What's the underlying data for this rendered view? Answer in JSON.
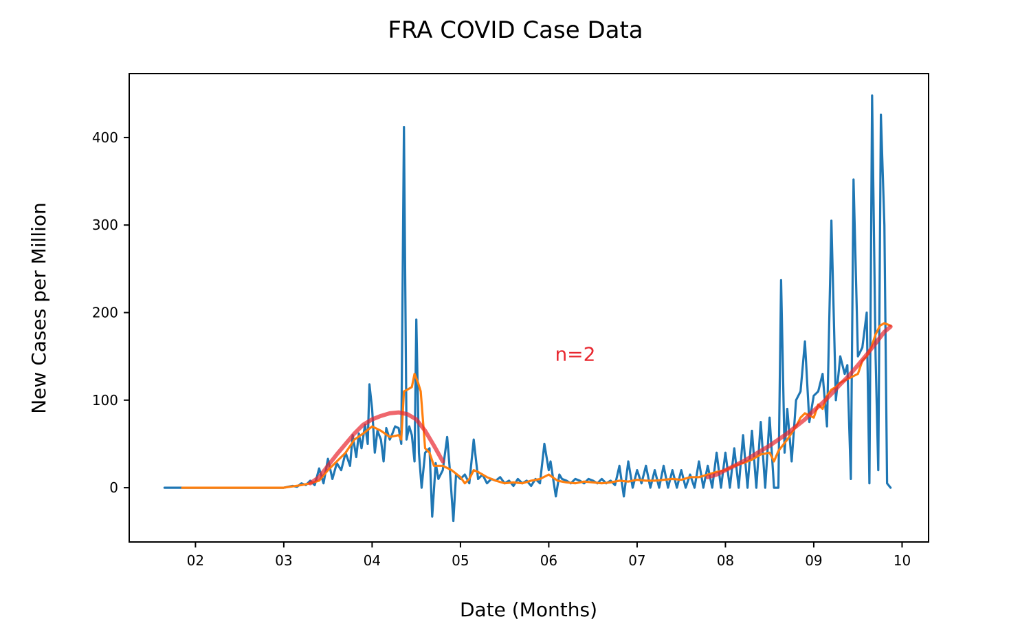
{
  "chart_data": {
    "type": "line",
    "title": "FRA COVID Case Data",
    "xlabel": "Date (Months)",
    "ylabel": "New Cases per Million",
    "xlim": [
      1.25,
      10.3
    ],
    "ylim": [
      -62,
      473
    ],
    "x_ticks": [
      2,
      3,
      4,
      5,
      6,
      7,
      8,
      9,
      10
    ],
    "x_tick_labels": [
      "02",
      "03",
      "04",
      "05",
      "06",
      "07",
      "08",
      "09",
      "10"
    ],
    "y_ticks": [
      0,
      100,
      200,
      300,
      400
    ],
    "y_tick_labels": [
      "0",
      "100",
      "200",
      "300",
      "400"
    ],
    "grid": false,
    "annotation": {
      "text": "n=2",
      "x": 6.3,
      "y": 145,
      "color": "#e8272f"
    },
    "series": [
      {
        "color": "#1f77b4",
        "points": [
          [
            1.65,
            0
          ],
          [
            1.85,
            0
          ],
          [
            2.2,
            0
          ],
          [
            2.6,
            0
          ],
          [
            3.0,
            0
          ],
          [
            3.1,
            2
          ],
          [
            3.15,
            1
          ],
          [
            3.2,
            5
          ],
          [
            3.25,
            3
          ],
          [
            3.3,
            8
          ],
          [
            3.35,
            3
          ],
          [
            3.4,
            22
          ],
          [
            3.45,
            5
          ],
          [
            3.5,
            33
          ],
          [
            3.55,
            10
          ],
          [
            3.6,
            28
          ],
          [
            3.65,
            20
          ],
          [
            3.7,
            40
          ],
          [
            3.75,
            25
          ],
          [
            3.78,
            60
          ],
          [
            3.82,
            35
          ],
          [
            3.85,
            62
          ],
          [
            3.88,
            45
          ],
          [
            3.92,
            72
          ],
          [
            3.95,
            50
          ],
          [
            3.97,
            118
          ],
          [
            4.0,
            90
          ],
          [
            4.03,
            40
          ],
          [
            4.06,
            65
          ],
          [
            4.1,
            55
          ],
          [
            4.13,
            30
          ],
          [
            4.16,
            68
          ],
          [
            4.2,
            55
          ],
          [
            4.23,
            62
          ],
          [
            4.26,
            70
          ],
          [
            4.3,
            68
          ],
          [
            4.33,
            50
          ],
          [
            4.36,
            412
          ],
          [
            4.39,
            55
          ],
          [
            4.42,
            70
          ],
          [
            4.45,
            60
          ],
          [
            4.48,
            30
          ],
          [
            4.5,
            192
          ],
          [
            4.53,
            40
          ],
          [
            4.56,
            0
          ],
          [
            4.6,
            40
          ],
          [
            4.65,
            45
          ],
          [
            4.68,
            -33
          ],
          [
            4.72,
            28
          ],
          [
            4.75,
            10
          ],
          [
            4.8,
            20
          ],
          [
            4.85,
            58
          ],
          [
            4.88,
            20
          ],
          [
            4.92,
            -38
          ],
          [
            4.95,
            15
          ],
          [
            5.0,
            10
          ],
          [
            5.05,
            15
          ],
          [
            5.1,
            5
          ],
          [
            5.15,
            55
          ],
          [
            5.2,
            10
          ],
          [
            5.25,
            15
          ],
          [
            5.3,
            5
          ],
          [
            5.35,
            10
          ],
          [
            5.4,
            8
          ],
          [
            5.45,
            12
          ],
          [
            5.5,
            5
          ],
          [
            5.55,
            8
          ],
          [
            5.6,
            2
          ],
          [
            5.65,
            10
          ],
          [
            5.7,
            5
          ],
          [
            5.75,
            8
          ],
          [
            5.8,
            2
          ],
          [
            5.85,
            10
          ],
          [
            5.9,
            5
          ],
          [
            5.95,
            50
          ],
          [
            6.0,
            20
          ],
          [
            6.02,
            30
          ],
          [
            6.05,
            10
          ],
          [
            6.08,
            -10
          ],
          [
            6.12,
            15
          ],
          [
            6.15,
            10
          ],
          [
            6.2,
            8
          ],
          [
            6.25,
            5
          ],
          [
            6.3,
            10
          ],
          [
            6.35,
            8
          ],
          [
            6.4,
            5
          ],
          [
            6.45,
            10
          ],
          [
            6.5,
            8
          ],
          [
            6.55,
            5
          ],
          [
            6.6,
            10
          ],
          [
            6.65,
            5
          ],
          [
            6.7,
            8
          ],
          [
            6.75,
            3
          ],
          [
            6.8,
            25
          ],
          [
            6.85,
            -10
          ],
          [
            6.9,
            30
          ],
          [
            6.95,
            0
          ],
          [
            7.0,
            20
          ],
          [
            7.05,
            5
          ],
          [
            7.1,
            25
          ],
          [
            7.15,
            0
          ],
          [
            7.2,
            20
          ],
          [
            7.25,
            0
          ],
          [
            7.3,
            25
          ],
          [
            7.35,
            0
          ],
          [
            7.4,
            20
          ],
          [
            7.45,
            0
          ],
          [
            7.5,
            20
          ],
          [
            7.55,
            0
          ],
          [
            7.6,
            15
          ],
          [
            7.65,
            0
          ],
          [
            7.7,
            30
          ],
          [
            7.75,
            0
          ],
          [
            7.8,
            25
          ],
          [
            7.85,
            0
          ],
          [
            7.9,
            40
          ],
          [
            7.95,
            0
          ],
          [
            8.0,
            40
          ],
          [
            8.05,
            0
          ],
          [
            8.1,
            45
          ],
          [
            8.15,
            0
          ],
          [
            8.2,
            60
          ],
          [
            8.25,
            0
          ],
          [
            8.3,
            65
          ],
          [
            8.35,
            0
          ],
          [
            8.4,
            75
          ],
          [
            8.45,
            0
          ],
          [
            8.5,
            80
          ],
          [
            8.55,
            0
          ],
          [
            8.6,
            0
          ],
          [
            8.63,
            237
          ],
          [
            8.67,
            40
          ],
          [
            8.7,
            90
          ],
          [
            8.75,
            30
          ],
          [
            8.8,
            100
          ],
          [
            8.85,
            110
          ],
          [
            8.9,
            167
          ],
          [
            8.95,
            75
          ],
          [
            9.0,
            105
          ],
          [
            9.05,
            110
          ],
          [
            9.1,
            130
          ],
          [
            9.15,
            70
          ],
          [
            9.2,
            305
          ],
          [
            9.25,
            100
          ],
          [
            9.3,
            150
          ],
          [
            9.35,
            130
          ],
          [
            9.38,
            140
          ],
          [
            9.42,
            10
          ],
          [
            9.45,
            352
          ],
          [
            9.5,
            150
          ],
          [
            9.55,
            160
          ],
          [
            9.6,
            200
          ],
          [
            9.63,
            5
          ],
          [
            9.66,
            448
          ],
          [
            9.7,
            150
          ],
          [
            9.73,
            20
          ],
          [
            9.76,
            426
          ],
          [
            9.8,
            300
          ],
          [
            9.83,
            5
          ],
          [
            9.87,
            0
          ]
        ]
      },
      {
        "color": "#ff7f0e",
        "points": [
          [
            1.85,
            0
          ],
          [
            2.5,
            0
          ],
          [
            3.0,
            0
          ],
          [
            3.2,
            3
          ],
          [
            3.3,
            5
          ],
          [
            3.4,
            8
          ],
          [
            3.5,
            20
          ],
          [
            3.6,
            30
          ],
          [
            3.7,
            40
          ],
          [
            3.8,
            55
          ],
          [
            3.9,
            62
          ],
          [
            4.0,
            70
          ],
          [
            4.1,
            65
          ],
          [
            4.2,
            58
          ],
          [
            4.3,
            60
          ],
          [
            4.33,
            55
          ],
          [
            4.36,
            110
          ],
          [
            4.4,
            112
          ],
          [
            4.45,
            115
          ],
          [
            4.48,
            130
          ],
          [
            4.52,
            120
          ],
          [
            4.55,
            110
          ],
          [
            4.6,
            45
          ],
          [
            4.65,
            40
          ],
          [
            4.7,
            25
          ],
          [
            4.8,
            25
          ],
          [
            4.9,
            20
          ],
          [
            5.0,
            12
          ],
          [
            5.05,
            5
          ],
          [
            5.1,
            10
          ],
          [
            5.15,
            20
          ],
          [
            5.2,
            18
          ],
          [
            5.3,
            12
          ],
          [
            5.4,
            8
          ],
          [
            5.5,
            5
          ],
          [
            5.6,
            6
          ],
          [
            5.7,
            5
          ],
          [
            5.8,
            8
          ],
          [
            5.9,
            10
          ],
          [
            6.0,
            15
          ],
          [
            6.1,
            8
          ],
          [
            6.2,
            6
          ],
          [
            6.3,
            5
          ],
          [
            6.4,
            7
          ],
          [
            6.5,
            6
          ],
          [
            6.6,
            5
          ],
          [
            6.7,
            6
          ],
          [
            6.8,
            8
          ],
          [
            6.9,
            7
          ],
          [
            7.0,
            9
          ],
          [
            7.1,
            8
          ],
          [
            7.2,
            8
          ],
          [
            7.3,
            9
          ],
          [
            7.4,
            10
          ],
          [
            7.5,
            9
          ],
          [
            7.6,
            12
          ],
          [
            7.7,
            12
          ],
          [
            7.8,
            15
          ],
          [
            7.9,
            18
          ],
          [
            8.0,
            20
          ],
          [
            8.1,
            25
          ],
          [
            8.2,
            28
          ],
          [
            8.3,
            32
          ],
          [
            8.4,
            38
          ],
          [
            8.5,
            40
          ],
          [
            8.55,
            30
          ],
          [
            8.6,
            42
          ],
          [
            8.7,
            55
          ],
          [
            8.8,
            70
          ],
          [
            8.85,
            80
          ],
          [
            8.9,
            85
          ],
          [
            9.0,
            80
          ],
          [
            9.05,
            95
          ],
          [
            9.1,
            90
          ],
          [
            9.15,
            105
          ],
          [
            9.2,
            112
          ],
          [
            9.25,
            115
          ],
          [
            9.3,
            120
          ],
          [
            9.4,
            125
          ],
          [
            9.5,
            130
          ],
          [
            9.55,
            145
          ],
          [
            9.6,
            150
          ],
          [
            9.65,
            160
          ],
          [
            9.7,
            175
          ],
          [
            9.75,
            185
          ],
          [
            9.8,
            188
          ],
          [
            9.87,
            185
          ]
        ]
      },
      {
        "color": "#e8272f",
        "opacity": 0.7,
        "width": 6,
        "points": [
          [
            3.3,
            5
          ],
          [
            3.4,
            12
          ],
          [
            3.5,
            25
          ],
          [
            3.6,
            38
          ],
          [
            3.7,
            50
          ],
          [
            3.8,
            62
          ],
          [
            3.9,
            72
          ],
          [
            4.0,
            78
          ],
          [
            4.1,
            82
          ],
          [
            4.2,
            85
          ],
          [
            4.3,
            86
          ],
          [
            4.4,
            84
          ],
          [
            4.5,
            78
          ],
          [
            4.6,
            65
          ],
          [
            4.7,
            48
          ],
          [
            4.8,
            30
          ]
        ]
      },
      {
        "color": "#e8272f",
        "opacity": 0.7,
        "width": 6,
        "points": [
          [
            7.8,
            12
          ],
          [
            7.9,
            15
          ],
          [
            8.0,
            20
          ],
          [
            8.1,
            25
          ],
          [
            8.2,
            30
          ],
          [
            8.3,
            36
          ],
          [
            8.4,
            42
          ],
          [
            8.5,
            48
          ],
          [
            8.6,
            55
          ],
          [
            8.7,
            62
          ],
          [
            8.8,
            70
          ],
          [
            8.9,
            78
          ],
          [
            9.0,
            88
          ],
          [
            9.1,
            97
          ],
          [
            9.2,
            107
          ],
          [
            9.3,
            118
          ],
          [
            9.4,
            128
          ],
          [
            9.5,
            140
          ],
          [
            9.6,
            152
          ],
          [
            9.7,
            165
          ],
          [
            9.8,
            178
          ],
          [
            9.87,
            184
          ]
        ]
      }
    ]
  }
}
